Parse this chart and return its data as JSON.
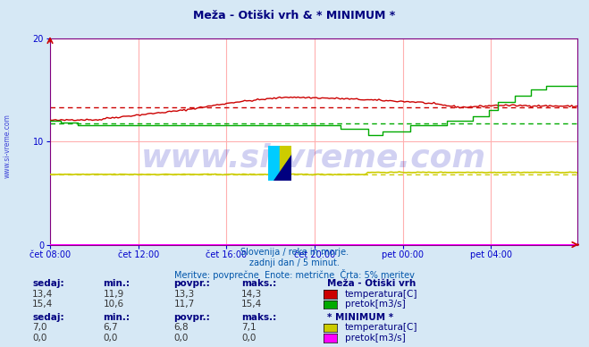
{
  "title": "Meža - Otiški vrh & * MINIMUM *",
  "title_color": "#000080",
  "bg_color": "#d6e8f5",
  "plot_bg_color": "#ffffff",
  "grid_color": "#ffb0b0",
  "axis_color": "#800080",
  "tick_color": "#0000cc",
  "subtitle_lines": [
    "Slovenija / reke in morje.",
    "zadnji dan / 5 minut.",
    "Meritve: povprečne  Enote: metrične  Črta: 5% meritev"
  ],
  "subtitle_color": "#0055aa",
  "watermark": "www.si-vreme.com",
  "watermark_color": "#0000bb",
  "watermark_alpha": 0.18,
  "xlim": [
    0,
    287
  ],
  "ylim": [
    0,
    20
  ],
  "yticks": [
    0,
    10,
    20
  ],
  "xtick_labels": [
    "čet 08:00",
    "čet 12:00",
    "čet 16:00",
    "čet 20:00",
    "pet 00:00",
    "pet 04:00"
  ],
  "xtick_positions": [
    0,
    48,
    96,
    144,
    192,
    240
  ],
  "vgrid_positions": [
    0,
    48,
    96,
    144,
    192,
    240,
    287
  ],
  "station1_name": "Meža - Otiški vrh",
  "station2_name": "* MINIMUM *",
  "temp1_color": "#cc0000",
  "flow1_color": "#00aa00",
  "temp2_color": "#cccc00",
  "flow2_color": "#ff00ff",
  "temp1_avg": 13.3,
  "temp1_min": 11.9,
  "temp1_max": 14.3,
  "temp1_now": 13.4,
  "flow1_avg": 11.7,
  "flow1_min": 10.6,
  "flow1_max": 15.4,
  "flow1_now": 15.4,
  "temp2_avg": 6.8,
  "temp2_min": 6.7,
  "temp2_max": 7.1,
  "temp2_now": 7.0,
  "flow2_avg": 0.0,
  "flow2_min": 0.0,
  "flow2_max": 0.0,
  "flow2_now": 0.0,
  "legend_label_color": "#000080",
  "legend_value_color": "#333333"
}
